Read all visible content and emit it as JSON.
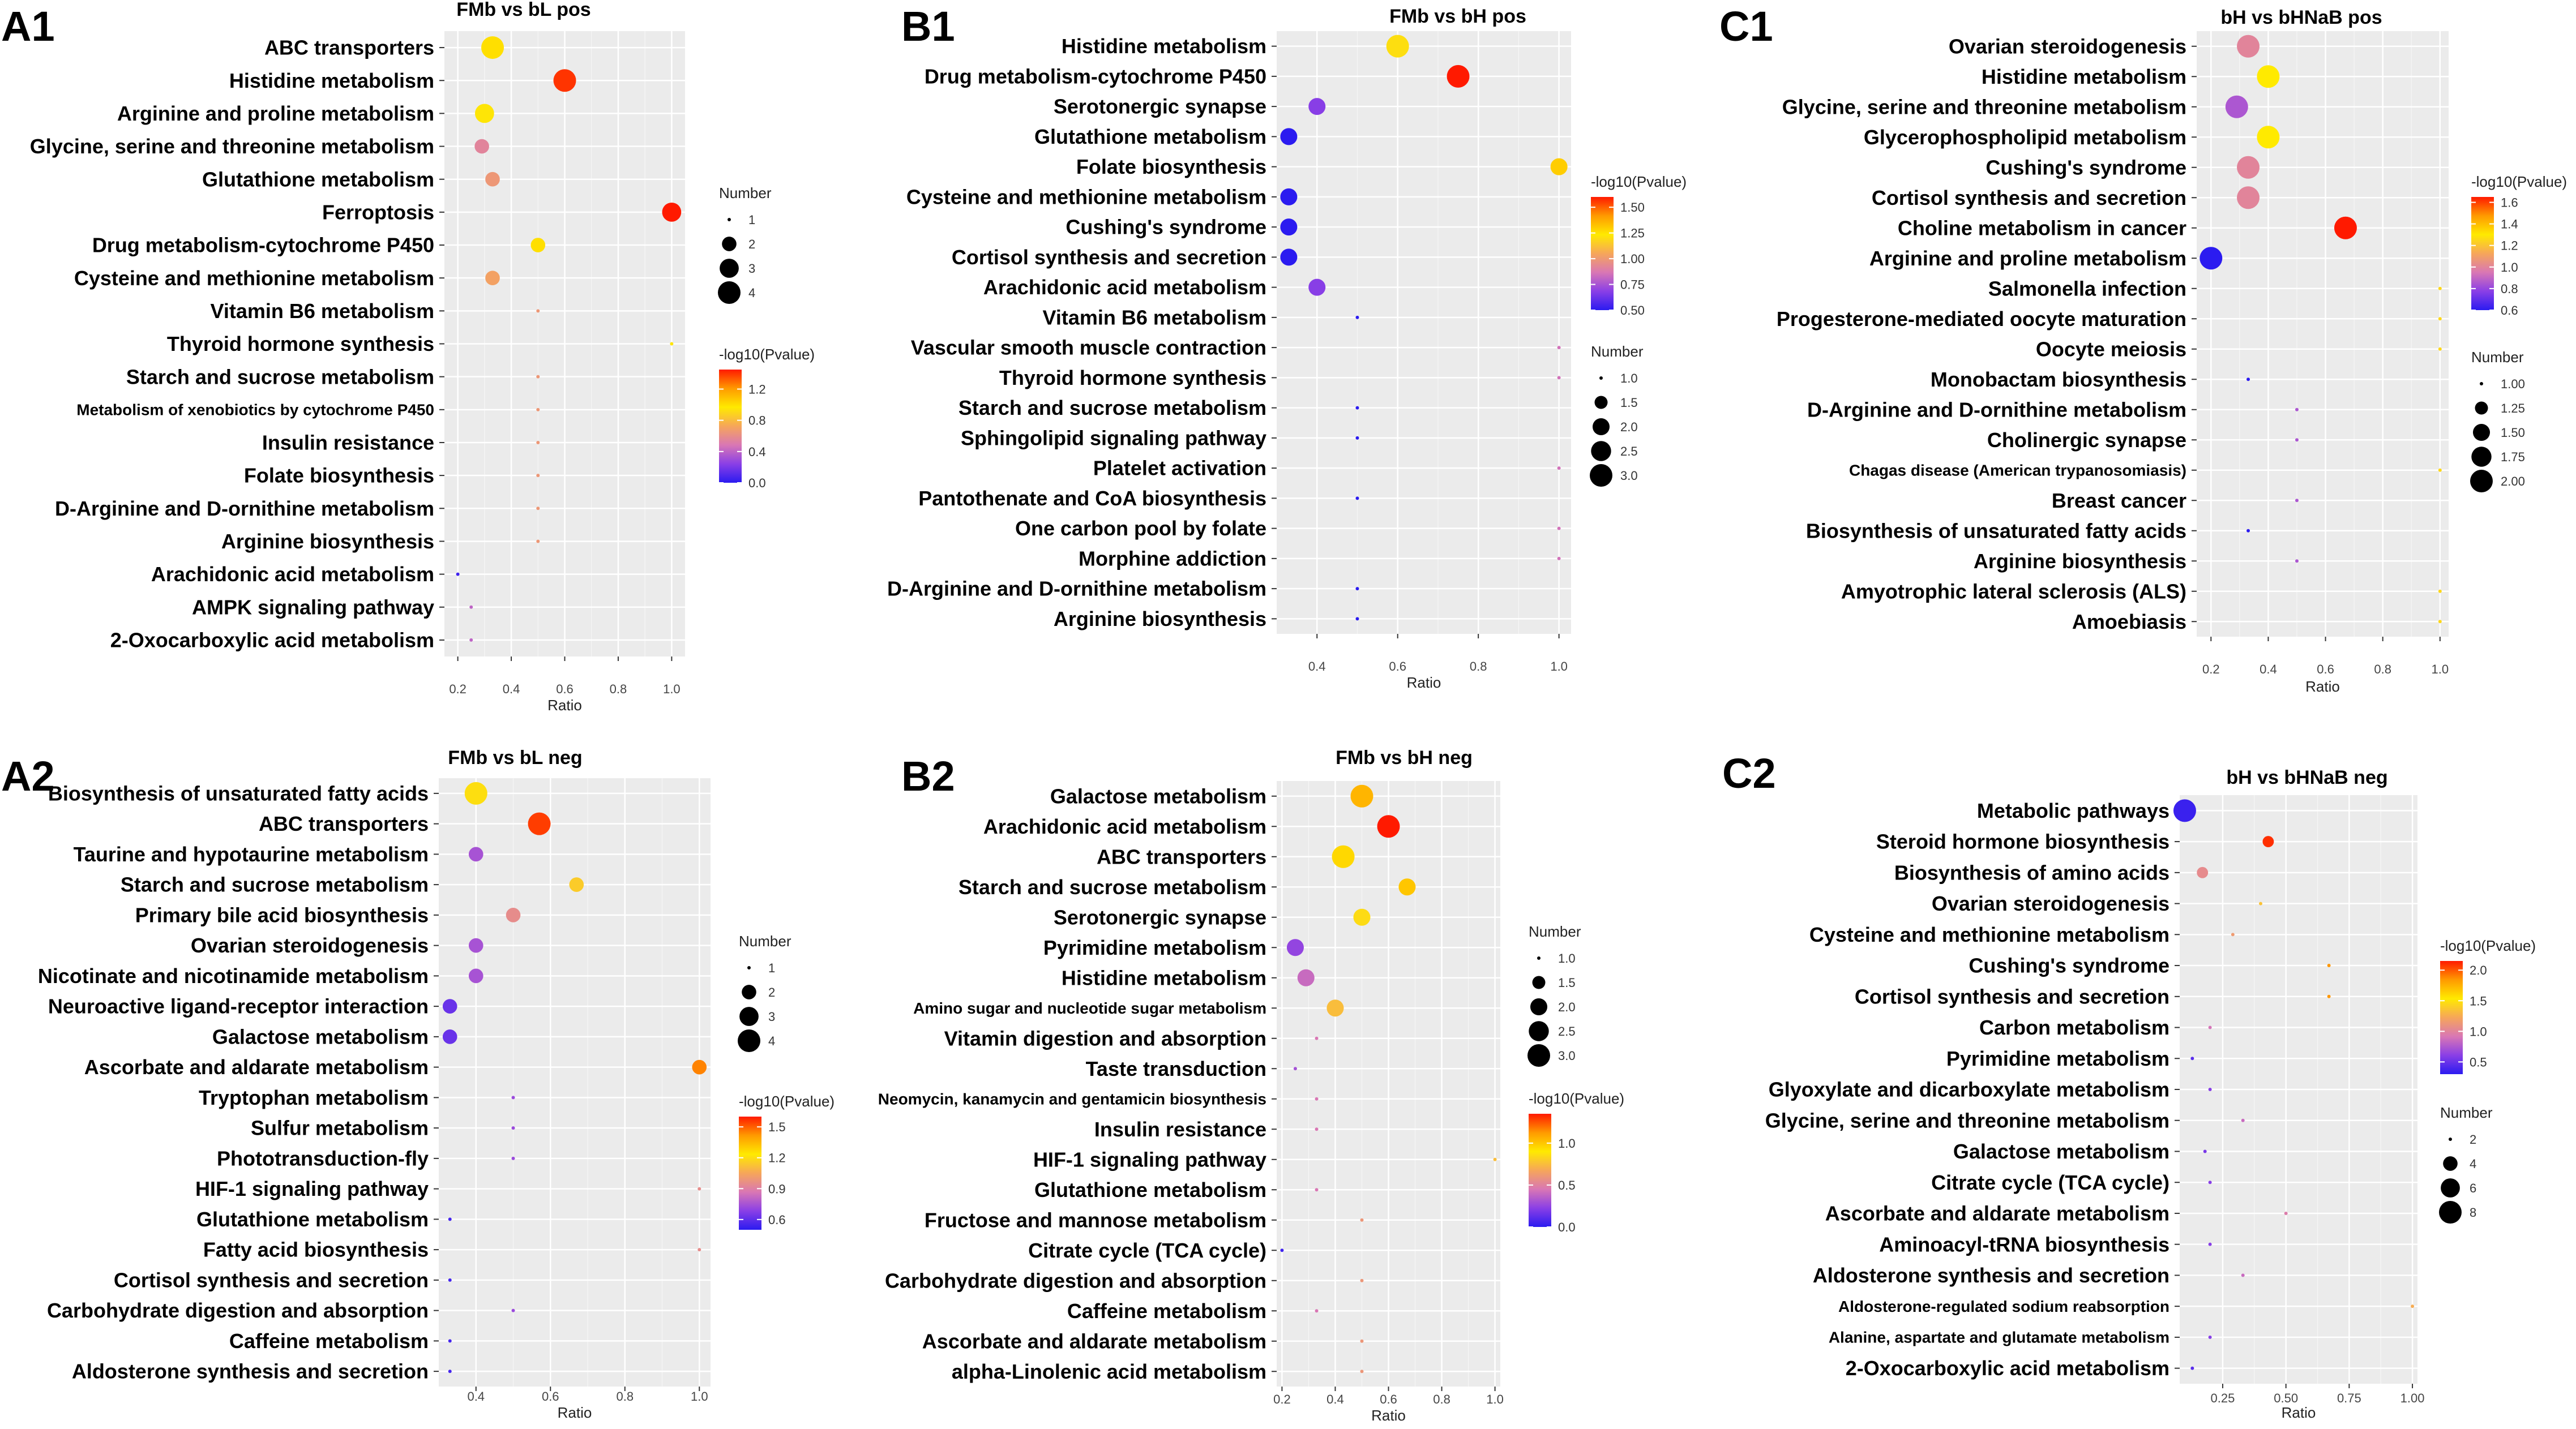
{
  "figure": {
    "color_scale": [
      "#2b1bf0",
      "#8a3fe6",
      "#d977b4",
      "#f6a65a",
      "#ffea00",
      "#ff9a00",
      "#ff1a00"
    ]
  },
  "chart_data": [
    {
      "id": "A1",
      "panel_label": "A1",
      "type": "scatter",
      "title": "FMb vs bL pos",
      "xlabel": "Ratio",
      "ylabel": "",
      "xlim": [
        0.15,
        1.05
      ],
      "xticks": [
        0.2,
        0.4,
        0.6,
        0.8,
        1.0
      ],
      "xtick_labels": [
        "0.2",
        "0.4",
        "0.6",
        "0.8",
        "1.0"
      ],
      "pathways": [
        "ABC transporters",
        "Histidine metabolism",
        "Arginine and proline metabolism",
        "Glycine, serine and threonine metabolism",
        "Glutathione metabolism",
        "Ferroptosis",
        "Drug metabolism-cytochrome P450",
        "Cysteine and methionine metabolism",
        "Vitamin B6 metabolism",
        "Thyroid hormone synthesis",
        "Starch and sucrose metabolism",
        "Metabolism of xenobiotics by cytochrome P450",
        "Insulin resistance",
        "Folate biosynthesis",
        "D-Arginine and D-ornithine metabolism",
        "Arginine biosynthesis",
        "Arachidonic acid metabolism",
        "AMPK signaling pathway",
        "2-Oxocarboxylic acid metabolism"
      ],
      "ratio": [
        0.33,
        0.6,
        0.3,
        0.29,
        0.33,
        1.0,
        0.5,
        0.33,
        0.5,
        1.0,
        0.5,
        0.5,
        0.5,
        0.5,
        0.5,
        0.5,
        0.2,
        0.25,
        0.25
      ],
      "number": [
        4,
        4,
        3,
        2,
        2,
        3,
        2,
        2,
        1,
        1,
        1,
        1,
        1,
        1,
        1,
        1,
        1,
        1,
        1
      ],
      "neglog10p": [
        1.0,
        1.4,
        0.95,
        0.55,
        0.65,
        1.45,
        1.0,
        0.7,
        0.65,
        0.95,
        0.65,
        0.65,
        0.65,
        0.65,
        0.65,
        0.65,
        0.05,
        0.4,
        0.4
      ],
      "legend": {
        "number_title": "Number",
        "number_values": [
          1,
          2,
          3,
          4
        ],
        "number_labels": [
          "1",
          "2",
          "3",
          "4"
        ],
        "color_title": "-log10(Pvalue)",
        "color_range": [
          0.0,
          1.45
        ],
        "color_ticks": [
          0.0,
          0.4,
          0.8,
          1.2
        ],
        "color_tick_labels": [
          "0.0",
          "0.4",
          "0.8",
          "1.2"
        ],
        "order": "number-first"
      }
    },
    {
      "id": "B1",
      "panel_label": "B1",
      "type": "scatter",
      "title": "FMb vs bH pos",
      "xlabel": "Ratio",
      "ylabel": "",
      "xlim": [
        0.3,
        1.03
      ],
      "xticks": [
        0.4,
        0.6,
        0.8,
        1.0
      ],
      "xtick_labels": [
        "0.4",
        "0.6",
        "0.8",
        "1.0"
      ],
      "pathways": [
        "Histidine metabolism",
        "Drug metabolism-cytochrome P450",
        "Serotonergic synapse",
        "Glutathione metabolism",
        "Folate biosynthesis",
        "Cysteine and methionine metabolism",
        "Cushing's syndrome",
        "Cortisol synthesis and secretion",
        "Arachidonic acid metabolism",
        "Vitamin B6 metabolism",
        "Vascular smooth muscle contraction",
        "Thyroid hormone synthesis",
        "Starch and sucrose metabolism",
        "Sphingolipid signaling pathway",
        "Platelet activation",
        "Pantothenate and CoA biosynthesis",
        "One carbon pool by folate",
        "Morphine addiction",
        "D-Arginine and D-ornithine metabolism",
        "Arginine biosynthesis"
      ],
      "ratio": [
        0.6,
        0.75,
        0.4,
        0.33,
        1.0,
        0.33,
        0.33,
        0.33,
        0.4,
        0.5,
        1.0,
        1.0,
        0.5,
        0.5,
        1.0,
        0.5,
        1.0,
        1.0,
        0.5,
        0.5
      ],
      "number": [
        3,
        3,
        2,
        2,
        2,
        2,
        2,
        2,
        2,
        1,
        1,
        1,
        1,
        1,
        1,
        1,
        1,
        1,
        1,
        1
      ],
      "neglog10p": [
        1.2,
        1.6,
        0.68,
        0.5,
        1.3,
        0.5,
        0.5,
        0.5,
        0.68,
        0.5,
        0.85,
        0.85,
        0.5,
        0.5,
        0.85,
        0.5,
        0.85,
        0.85,
        0.5,
        0.5
      ],
      "legend": {
        "number_title": "Number",
        "number_values": [
          1.0,
          1.5,
          2.0,
          2.5,
          3.0
        ],
        "number_labels": [
          "1.0",
          "1.5",
          "2.0",
          "2.5",
          "3.0"
        ],
        "color_title": "-log10(Pvalue)",
        "color_range": [
          0.5,
          1.6
        ],
        "color_ticks": [
          0.5,
          0.75,
          1.0,
          1.25,
          1.5
        ],
        "color_tick_labels": [
          "0.50",
          "0.75",
          "1.00",
          "1.25",
          "1.50"
        ],
        "order": "color-first"
      }
    },
    {
      "id": "C1",
      "panel_label": "C1",
      "type": "scatter",
      "title": "bH vs bHNaB pos",
      "xlabel": "Ratio",
      "ylabel": "",
      "xlim": [
        0.15,
        1.03
      ],
      "xticks": [
        0.2,
        0.4,
        0.6,
        0.8,
        1.0
      ],
      "xtick_labels": [
        "0.2",
        "0.4",
        "0.6",
        "0.8",
        "1.0"
      ],
      "pathways": [
        "Ovarian steroidogenesis",
        "Histidine metabolism",
        "Glycine, serine and threonine metabolism",
        "Glycerophospholipid metabolism",
        "Cushing's syndrome",
        "Cortisol synthesis and secretion",
        "Choline metabolism in cancer",
        "Arginine and proline metabolism",
        "Salmonella infection",
        "Progesterone-mediated oocyte maturation",
        "Oocyte meiosis",
        "Monobactam biosynthesis",
        "D-Arginine and D-ornithine metabolism",
        "Cholinergic synapse",
        "Chagas disease (American trypanosomiasis)",
        "Breast cancer",
        "Biosynthesis of unsaturated fatty acids",
        "Arginine biosynthesis",
        "Amyotrophic lateral sclerosis (ALS)",
        "Amoebiasis"
      ],
      "ratio": [
        0.33,
        0.4,
        0.29,
        0.4,
        0.33,
        0.33,
        0.67,
        0.2,
        1.0,
        1.0,
        1.0,
        0.33,
        0.5,
        0.5,
        1.0,
        0.5,
        0.33,
        0.5,
        1.0,
        1.0
      ],
      "number": [
        2,
        2,
        2,
        2,
        2,
        2,
        2,
        2,
        1,
        1,
        1,
        1,
        1,
        1,
        1,
        1,
        1,
        1,
        1,
        1
      ],
      "neglog10p": [
        1.0,
        1.3,
        0.85,
        1.3,
        1.0,
        1.0,
        1.65,
        0.6,
        1.25,
        1.25,
        1.25,
        0.6,
        0.85,
        0.85,
        1.25,
        0.85,
        0.6,
        0.85,
        1.25,
        1.25
      ],
      "legend": {
        "number_title": "Number",
        "number_values": [
          1.0,
          1.25,
          1.5,
          1.75,
          2.0
        ],
        "number_labels": [
          "1.00",
          "1.25",
          "1.50",
          "1.75",
          "2.00"
        ],
        "color_title": "-log10(Pvalue)",
        "color_range": [
          0.6,
          1.65
        ],
        "color_ticks": [
          0.6,
          0.8,
          1.0,
          1.2,
          1.4,
          1.6
        ],
        "color_tick_labels": [
          "0.6",
          "0.8",
          "1.0",
          "1.2",
          "1.4",
          "1.6"
        ],
        "order": "color-first"
      }
    },
    {
      "id": "A2",
      "panel_label": "A2",
      "type": "scatter",
      "title": "FMb vs bL neg",
      "xlabel": "Ratio",
      "ylabel": "",
      "xlim": [
        0.3,
        1.03
      ],
      "xticks": [
        0.4,
        0.6,
        0.8,
        1.0
      ],
      "xtick_labels": [
        "0.4",
        "0.6",
        "0.8",
        "1.0"
      ],
      "pathways": [
        "Biosynthesis of unsaturated fatty acids",
        "ABC transporters",
        "Taurine and hypotaurine metabolism",
        "Starch and sucrose metabolism",
        "Primary bile acid biosynthesis",
        "Ovarian steroidogenesis",
        "Nicotinate and nicotinamide metabolism",
        "Neuroactive ligand-receptor interaction",
        "Galactose metabolism",
        "Ascorbate and aldarate metabolism",
        "Tryptophan metabolism",
        "Sulfur metabolism",
        "Phototransduction-fly",
        "HIF-1 signaling pathway",
        "Glutathione metabolism",
        "Fatty acid biosynthesis",
        "Cortisol synthesis and secretion",
        "Carbohydrate digestion and absorption",
        "Caffeine metabolism",
        "Aldosterone synthesis and secretion"
      ],
      "ratio": [
        0.4,
        0.57,
        0.4,
        0.67,
        0.5,
        0.4,
        0.4,
        0.33,
        0.33,
        1.0,
        0.5,
        0.5,
        0.5,
        1.0,
        0.33,
        1.0,
        0.33,
        0.5,
        0.33,
        0.33
      ],
      "number": [
        4,
        4,
        2,
        2,
        2,
        2,
        2,
        2,
        2,
        2,
        1,
        1,
        1,
        1,
        1,
        1,
        1,
        1,
        1,
        1
      ],
      "neglog10p": [
        1.2,
        1.55,
        0.75,
        1.15,
        0.95,
        0.75,
        0.75,
        0.62,
        0.62,
        1.45,
        0.72,
        0.72,
        0.72,
        0.95,
        0.55,
        0.95,
        0.55,
        0.72,
        0.55,
        0.55
      ],
      "legend": {
        "number_title": "Number",
        "number_values": [
          1,
          2,
          3,
          4
        ],
        "number_labels": [
          "1",
          "2",
          "3",
          "4"
        ],
        "color_title": "-log10(Pvalue)",
        "color_range": [
          0.5,
          1.6
        ],
        "color_ticks": [
          0.6,
          0.9,
          1.2,
          1.5
        ],
        "color_tick_labels": [
          "0.6",
          "0.9",
          "1.2",
          "1.5"
        ],
        "order": "number-first"
      }
    },
    {
      "id": "B2",
      "panel_label": "B2",
      "type": "scatter",
      "title": "FMb vs bH neg",
      "xlabel": "Ratio",
      "ylabel": "",
      "xlim": [
        0.18,
        1.02
      ],
      "xticks": [
        0.2,
        0.4,
        0.6,
        0.8,
        1.0
      ],
      "xtick_labels": [
        "0.2",
        "0.4",
        "0.6",
        "0.8",
        "1.0"
      ],
      "pathways": [
        "Galactose metabolism",
        "Arachidonic acid metabolism",
        "ABC transporters",
        "Starch and sucrose metabolism",
        "Serotonergic synapse",
        "Pyrimidine metabolism",
        "Histidine metabolism",
        "Amino sugar and nucleotide sugar metabolism",
        "Vitamin digestion and absorption",
        "Taste transduction",
        "Neomycin, kanamycin and gentamicin biosynthesis",
        "Insulin resistance",
        "HIF-1 signaling pathway",
        "Glutathione metabolism",
        "Fructose and mannose metabolism",
        "Citrate cycle (TCA cycle)",
        "Carbohydrate digestion and absorption",
        "Caffeine metabolism",
        "Ascorbate and aldarate metabolism",
        "alpha-Linolenic acid metabolism"
      ],
      "ratio": [
        0.5,
        0.6,
        0.43,
        0.67,
        0.5,
        0.25,
        0.29,
        0.4,
        0.33,
        0.25,
        0.33,
        0.33,
        1.0,
        0.33,
        0.5,
        0.2,
        0.5,
        0.33,
        0.5,
        0.5
      ],
      "number": [
        3,
        3,
        3,
        2,
        2,
        2,
        2,
        2,
        1,
        1,
        1,
        1,
        1,
        1,
        1,
        1,
        1,
        1,
        1,
        1
      ],
      "neglog10p": [
        1.05,
        1.35,
        0.95,
        1.0,
        0.85,
        0.25,
        0.4,
        0.75,
        0.45,
        0.3,
        0.45,
        0.45,
        0.75,
        0.45,
        0.6,
        0.05,
        0.6,
        0.45,
        0.6,
        0.6
      ],
      "legend": {
        "number_title": "Number",
        "number_values": [
          1.0,
          1.5,
          2.0,
          2.5,
          3.0
        ],
        "number_labels": [
          "1.0",
          "1.5",
          "2.0",
          "2.5",
          "3.0"
        ],
        "color_title": "-log10(Pvalue)",
        "color_range": [
          0.0,
          1.35
        ],
        "color_ticks": [
          0.0,
          0.5,
          1.0
        ],
        "color_tick_labels": [
          "0.0",
          "0.5",
          "1.0"
        ],
        "order": "number-first"
      }
    },
    {
      "id": "C2",
      "panel_label": "C2",
      "type": "scatter",
      "title": "bH vs bHNaB neg",
      "xlabel": "Ratio",
      "ylabel": "",
      "xlim": [
        0.08,
        1.02
      ],
      "xticks": [
        0.25,
        0.5,
        0.75,
        1.0
      ],
      "xtick_labels": [
        "0.25",
        "0.50",
        "0.75",
        "1.00"
      ],
      "pathways": [
        "Metabolic pathways",
        "Steroid hormone biosynthesis",
        "Biosynthesis of amino acids",
        "Ovarian steroidogenesis",
        "Cysteine and methionine metabolism",
        "Cushing's syndrome",
        "Cortisol synthesis and secretion",
        "Carbon metabolism",
        "Pyrimidine metabolism",
        "Glyoxylate and dicarboxylate metabolism",
        "Glycine, serine and threonine metabolism",
        "Galactose metabolism",
        "Citrate cycle (TCA cycle)",
        "Ascorbate and aldarate metabolism",
        "Aminoacyl-tRNA biosynthesis",
        "Aldosterone synthesis and secretion",
        "Aldosterone-regulated sodium reabsorption",
        "Alanine, aspartate and glutamate metabolism",
        "2-Oxocarboxylic acid metabolism"
      ],
      "ratio": [
        0.1,
        0.43,
        0.17,
        0.4,
        0.29,
        0.67,
        0.67,
        0.2,
        0.13,
        0.2,
        0.33,
        0.18,
        0.2,
        0.5,
        0.2,
        0.33,
        1.0,
        0.2,
        0.13
      ],
      "number": [
        8,
        3,
        3,
        2,
        2,
        2,
        2,
        2,
        1,
        1,
        1,
        1,
        1,
        1,
        1,
        1,
        1,
        1,
        1
      ],
      "neglog10p": [
        0.35,
        2.1,
        1.05,
        1.35,
        1.15,
        1.85,
        1.85,
        0.9,
        0.45,
        0.6,
        0.85,
        0.55,
        0.6,
        0.95,
        0.6,
        0.85,
        1.25,
        0.6,
        0.45
      ],
      "legend": {
        "number_title": "Number",
        "number_values": [
          2,
          4,
          6,
          8
        ],
        "number_labels": [
          "2",
          "4",
          "6",
          "8"
        ],
        "color_title": "-log10(Pvalue)",
        "color_range": [
          0.3,
          2.15
        ],
        "color_ticks": [
          0.5,
          1.0,
          1.5,
          2.0
        ],
        "color_tick_labels": [
          "0.5",
          "1.0",
          "1.5",
          "2.0"
        ],
        "order": "color-first"
      }
    }
  ]
}
